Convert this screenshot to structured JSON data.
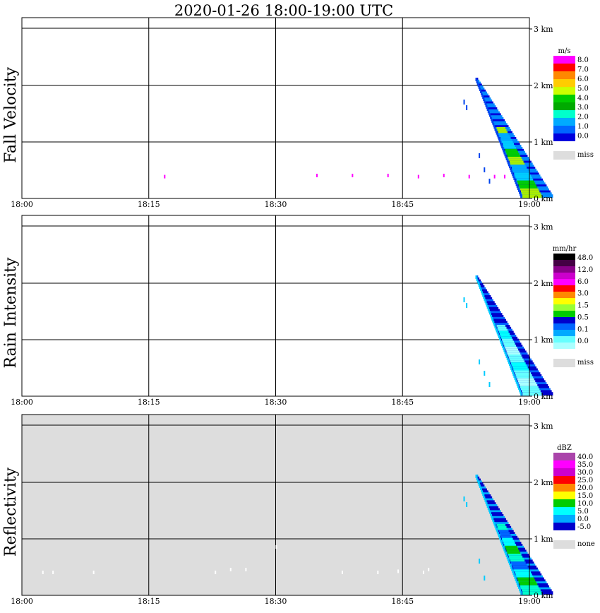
{
  "title": "2020-01-26   18:00-19:00 UTC",
  "x_tick_labels": [
    "18:00",
    "18:15",
    "18:30",
    "18:45",
    "19:00"
  ],
  "y_tick_labels": [
    "0 km",
    "1 km",
    "2 km",
    "3 km"
  ],
  "chart_data": [
    {
      "type": "heatmap",
      "ylabel": "Fall Velocity",
      "unit": "m/s",
      "background": "#ffffff",
      "legend_colors": [
        "#ff00ff",
        "#ff0000",
        "#ff8800",
        "#ffcc00",
        "#ccff00",
        "#00cc00",
        "#00aa00",
        "#00ffcc",
        "#00aaff",
        "#0066ff",
        "#0000dd"
      ],
      "legend_labels": [
        "8.0",
        "7.0",
        "6.0",
        "5.0",
        "4.0",
        "3.0",
        "2.0",
        "1.0",
        "0.0"
      ],
      "miss_label": "miss",
      "core_colors": [
        "#0044ee",
        "#0000dd",
        "#0088ff"
      ],
      "fringe_colors": [
        "#00ccff",
        "#00cc00",
        "#aaee00",
        "#00aaff"
      ],
      "speck_color": "#ff00ff",
      "specks": [
        [
          18.28,
          0.38
        ],
        [
          18.58,
          0.4
        ],
        [
          18.65,
          0.4
        ],
        [
          18.72,
          0.4
        ],
        [
          18.78,
          0.38
        ],
        [
          18.83,
          0.4
        ],
        [
          18.88,
          0.38
        ],
        [
          18.93,
          0.38
        ],
        [
          18.95,
          0.38
        ]
      ],
      "stray": [
        [
          18.87,
          1.7
        ],
        [
          18.875,
          1.6
        ],
        [
          18.9,
          0.75
        ],
        [
          18.91,
          0.5
        ],
        [
          18.92,
          0.3
        ]
      ]
    },
    {
      "type": "heatmap",
      "ylabel": "Rain Intensity",
      "unit": "mm/hr",
      "background": "#ffffff",
      "legend_colors": [
        "#000000",
        "#440044",
        "#880088",
        "#cc00cc",
        "#ff00ff",
        "#ff0000",
        "#ff8800",
        "#ffff00",
        "#99ff33",
        "#00cc00",
        "#0000cc",
        "#0066ff",
        "#00aaff",
        "#66ffff",
        "#aaffff"
      ],
      "legend_labels": [
        "48.0",
        "12.0",
        "6.0",
        "3.0",
        "1.5",
        "0.5",
        "0.1",
        "0.0"
      ],
      "miss_label": "miss",
      "core_colors": [
        "#00ccff",
        "#0066ff",
        "#0000cc"
      ],
      "fringe_colors": [
        "#66ffff",
        "#aaffff",
        "#66ffff",
        "#00ffff"
      ],
      "speck_color": "#aaffff",
      "specks": [],
      "stray": [
        [
          18.87,
          1.7
        ],
        [
          18.875,
          1.6
        ],
        [
          18.9,
          0.6
        ],
        [
          18.91,
          0.4
        ],
        [
          18.92,
          0.2
        ]
      ]
    },
    {
      "type": "heatmap",
      "ylabel": "Reflectivity",
      "unit": "dBZ",
      "background": "#dddddd",
      "legend_colors": [
        "#aa44aa",
        "#ff00ff",
        "#cc00cc",
        "#ff0000",
        "#ff8800",
        "#ffff00",
        "#00cc00",
        "#00ffff",
        "#00aaff",
        "#0000cc"
      ],
      "legend_labels": [
        "40.0",
        "35.0",
        "30.0",
        "25.0",
        "20.0",
        "15.0",
        "10.0",
        "5.0",
        "0.0",
        "-5.0"
      ],
      "miss_label": "none",
      "core_colors": [
        "#00ccff",
        "#00aaff",
        "#0000cc"
      ],
      "fringe_colors": [
        "#00ffff",
        "#00cc00",
        "#00ffcc",
        "#0066ff"
      ],
      "speck_color": "#ffffff",
      "specks": [
        [
          18.04,
          0.4
        ],
        [
          18.06,
          0.4
        ],
        [
          18.14,
          0.4
        ],
        [
          18.38,
          0.4
        ],
        [
          18.41,
          0.45
        ],
        [
          18.44,
          0.45
        ],
        [
          18.5,
          0.85
        ],
        [
          18.63,
          0.4
        ],
        [
          18.7,
          0.4
        ],
        [
          18.74,
          0.42
        ],
        [
          18.79,
          0.4
        ],
        [
          18.8,
          0.45
        ]
      ],
      "stray": [
        [
          18.87,
          1.7
        ],
        [
          18.875,
          1.6
        ],
        [
          18.9,
          0.6
        ],
        [
          18.91,
          0.3
        ]
      ]
    }
  ]
}
